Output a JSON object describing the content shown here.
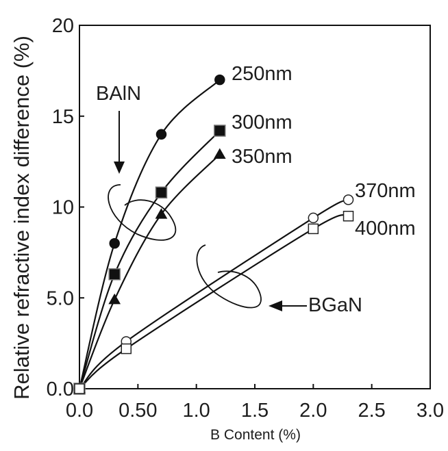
{
  "chart_data": {
    "type": "line",
    "title": "",
    "xlabel": "B Content (%)",
    "ylabel": "Relative refractive index difference (%)",
    "xlim": [
      0,
      3.0
    ],
    "ylim": [
      0,
      20
    ],
    "x_ticks": [
      "0.0",
      "0.50",
      "1.0",
      "1.5",
      "2.0",
      "2.5",
      "3.0"
    ],
    "y_ticks": [
      "0.0",
      "5.0",
      "10",
      "15",
      "20"
    ],
    "grid": false,
    "legend": "none",
    "annotations": [
      "BAlN",
      "BGaN"
    ],
    "series": [
      {
        "name": "250nm",
        "group": "BAlN",
        "marker": "filled-circle",
        "color": "#111111",
        "x": [
          0.0,
          0.3,
          0.7,
          1.2
        ],
        "values": [
          0.0,
          8.0,
          14.0,
          17.0
        ]
      },
      {
        "name": "300nm",
        "group": "BAlN",
        "marker": "filled-square",
        "color": "#111111",
        "x": [
          0.0,
          0.3,
          0.7,
          1.2
        ],
        "values": [
          0.0,
          6.3,
          10.8,
          14.2
        ]
      },
      {
        "name": "350nm",
        "group": "BAlN",
        "marker": "filled-triangle",
        "color": "#111111",
        "x": [
          0.0,
          0.3,
          0.7,
          1.2
        ],
        "values": [
          0.0,
          4.9,
          9.6,
          12.9
        ]
      },
      {
        "name": "370nm",
        "group": "BGaN",
        "marker": "open-circle",
        "color": "#111111",
        "x": [
          0.0,
          0.4,
          2.0,
          2.3
        ],
        "values": [
          0.0,
          2.6,
          9.4,
          10.4
        ]
      },
      {
        "name": "400nm",
        "group": "BGaN",
        "marker": "open-square",
        "color": "#111111",
        "x": [
          0.0,
          0.4,
          2.0,
          2.3
        ],
        "values": [
          0.0,
          2.2,
          8.8,
          9.5
        ]
      }
    ]
  }
}
